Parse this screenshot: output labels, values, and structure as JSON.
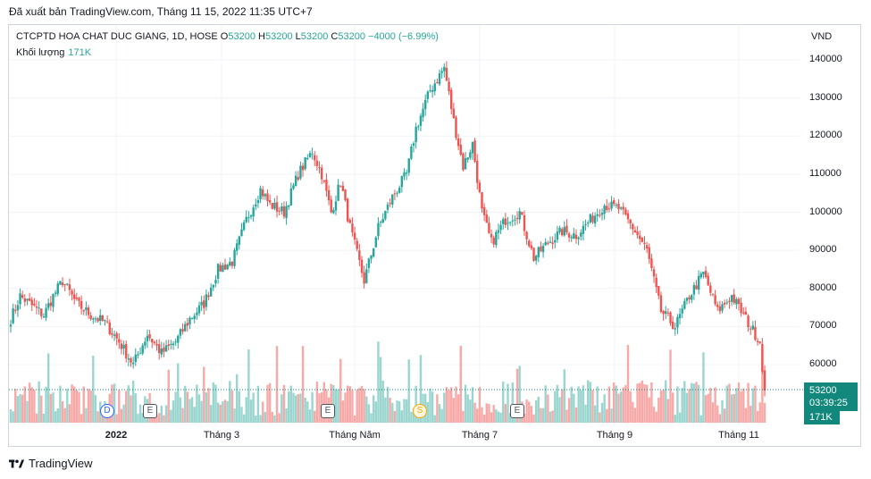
{
  "export_line": "Đã xuất bản TradingView.com, Tháng 11 15, 2022 11:35 UTC+7",
  "legend": {
    "symbol": "CTCPTD HOA CHAT DUC GIANG, 1D, HOSE",
    "o_label": "O",
    "o_value": "53200",
    "h_label": "H",
    "h_value": "53200",
    "l_label": "L",
    "l_value": "53200",
    "c_label": "C",
    "c_value": "53200",
    "change": "−4000 (−6.99%)",
    "volume_label": "Khối lượng",
    "volume_value": "171K"
  },
  "currency": "VND",
  "last_price_label": "53200",
  "countdown": "03:39:25",
  "last_volume_label": "171K",
  "events": {
    "dividend": "D",
    "earnings": "E",
    "split": "S"
  },
  "brand": "TradingView",
  "colors": {
    "up": "#26a69a",
    "down": "#ef5350",
    "up_vol": "#9ad6cf",
    "down_vol": "#f7a9a7",
    "price_line": "#12877b"
  },
  "chart_data": {
    "type": "candlestick",
    "y_axis": {
      "ticks": [
        60000,
        70000,
        80000,
        90000,
        100000,
        110000,
        120000,
        130000,
        140000
      ],
      "range": [
        53000,
        142000
      ]
    },
    "x_axis": {
      "ticks": [
        "2022",
        "Tháng 3",
        "Tháng Năm",
        "Tháng 7",
        "Tháng 9",
        "Tháng 11"
      ],
      "bold": [
        "2022"
      ]
    },
    "last_price": 53200,
    "path_anchors": [
      [
        0,
        72000
      ],
      [
        4,
        78000
      ],
      [
        10,
        75000
      ],
      [
        14,
        73000
      ],
      [
        18,
        78000
      ],
      [
        22,
        82000
      ],
      [
        28,
        76000
      ],
      [
        34,
        73000
      ],
      [
        40,
        71000
      ],
      [
        46,
        66000
      ],
      [
        52,
        60000
      ],
      [
        58,
        68000
      ],
      [
        64,
        63000
      ],
      [
        70,
        66000
      ],
      [
        76,
        72000
      ],
      [
        82,
        76000
      ],
      [
        88,
        85000
      ],
      [
        94,
        87000
      ],
      [
        100,
        98000
      ],
      [
        106,
        106000
      ],
      [
        110,
        102000
      ],
      [
        116,
        100000
      ],
      [
        122,
        110000
      ],
      [
        128,
        116000
      ],
      [
        132,
        110000
      ],
      [
        136,
        100000
      ],
      [
        140,
        108000
      ],
      [
        144,
        96000
      ],
      [
        150,
        82000
      ],
      [
        156,
        96000
      ],
      [
        162,
        104000
      ],
      [
        168,
        110000
      ],
      [
        172,
        122000
      ],
      [
        178,
        132000
      ],
      [
        184,
        138000
      ],
      [
        188,
        124000
      ],
      [
        192,
        112000
      ],
      [
        196,
        118000
      ],
      [
        200,
        100000
      ],
      [
        204,
        92000
      ],
      [
        210,
        98000
      ],
      [
        216,
        100000
      ],
      [
        222,
        88000
      ],
      [
        228,
        92000
      ],
      [
        234,
        95000
      ],
      [
        240,
        94000
      ],
      [
        246,
        98000
      ],
      [
        252,
        102000
      ],
      [
        258,
        101000
      ],
      [
        264,
        96000
      ],
      [
        270,
        90000
      ],
      [
        276,
        74000
      ],
      [
        282,
        70000
      ],
      [
        288,
        78000
      ],
      [
        294,
        84000
      ],
      [
        300,
        74000
      ],
      [
        306,
        78000
      ],
      [
        312,
        72000
      ],
      [
        318,
        66000
      ],
      [
        320,
        53200
      ]
    ],
    "total_bars": 321
  }
}
